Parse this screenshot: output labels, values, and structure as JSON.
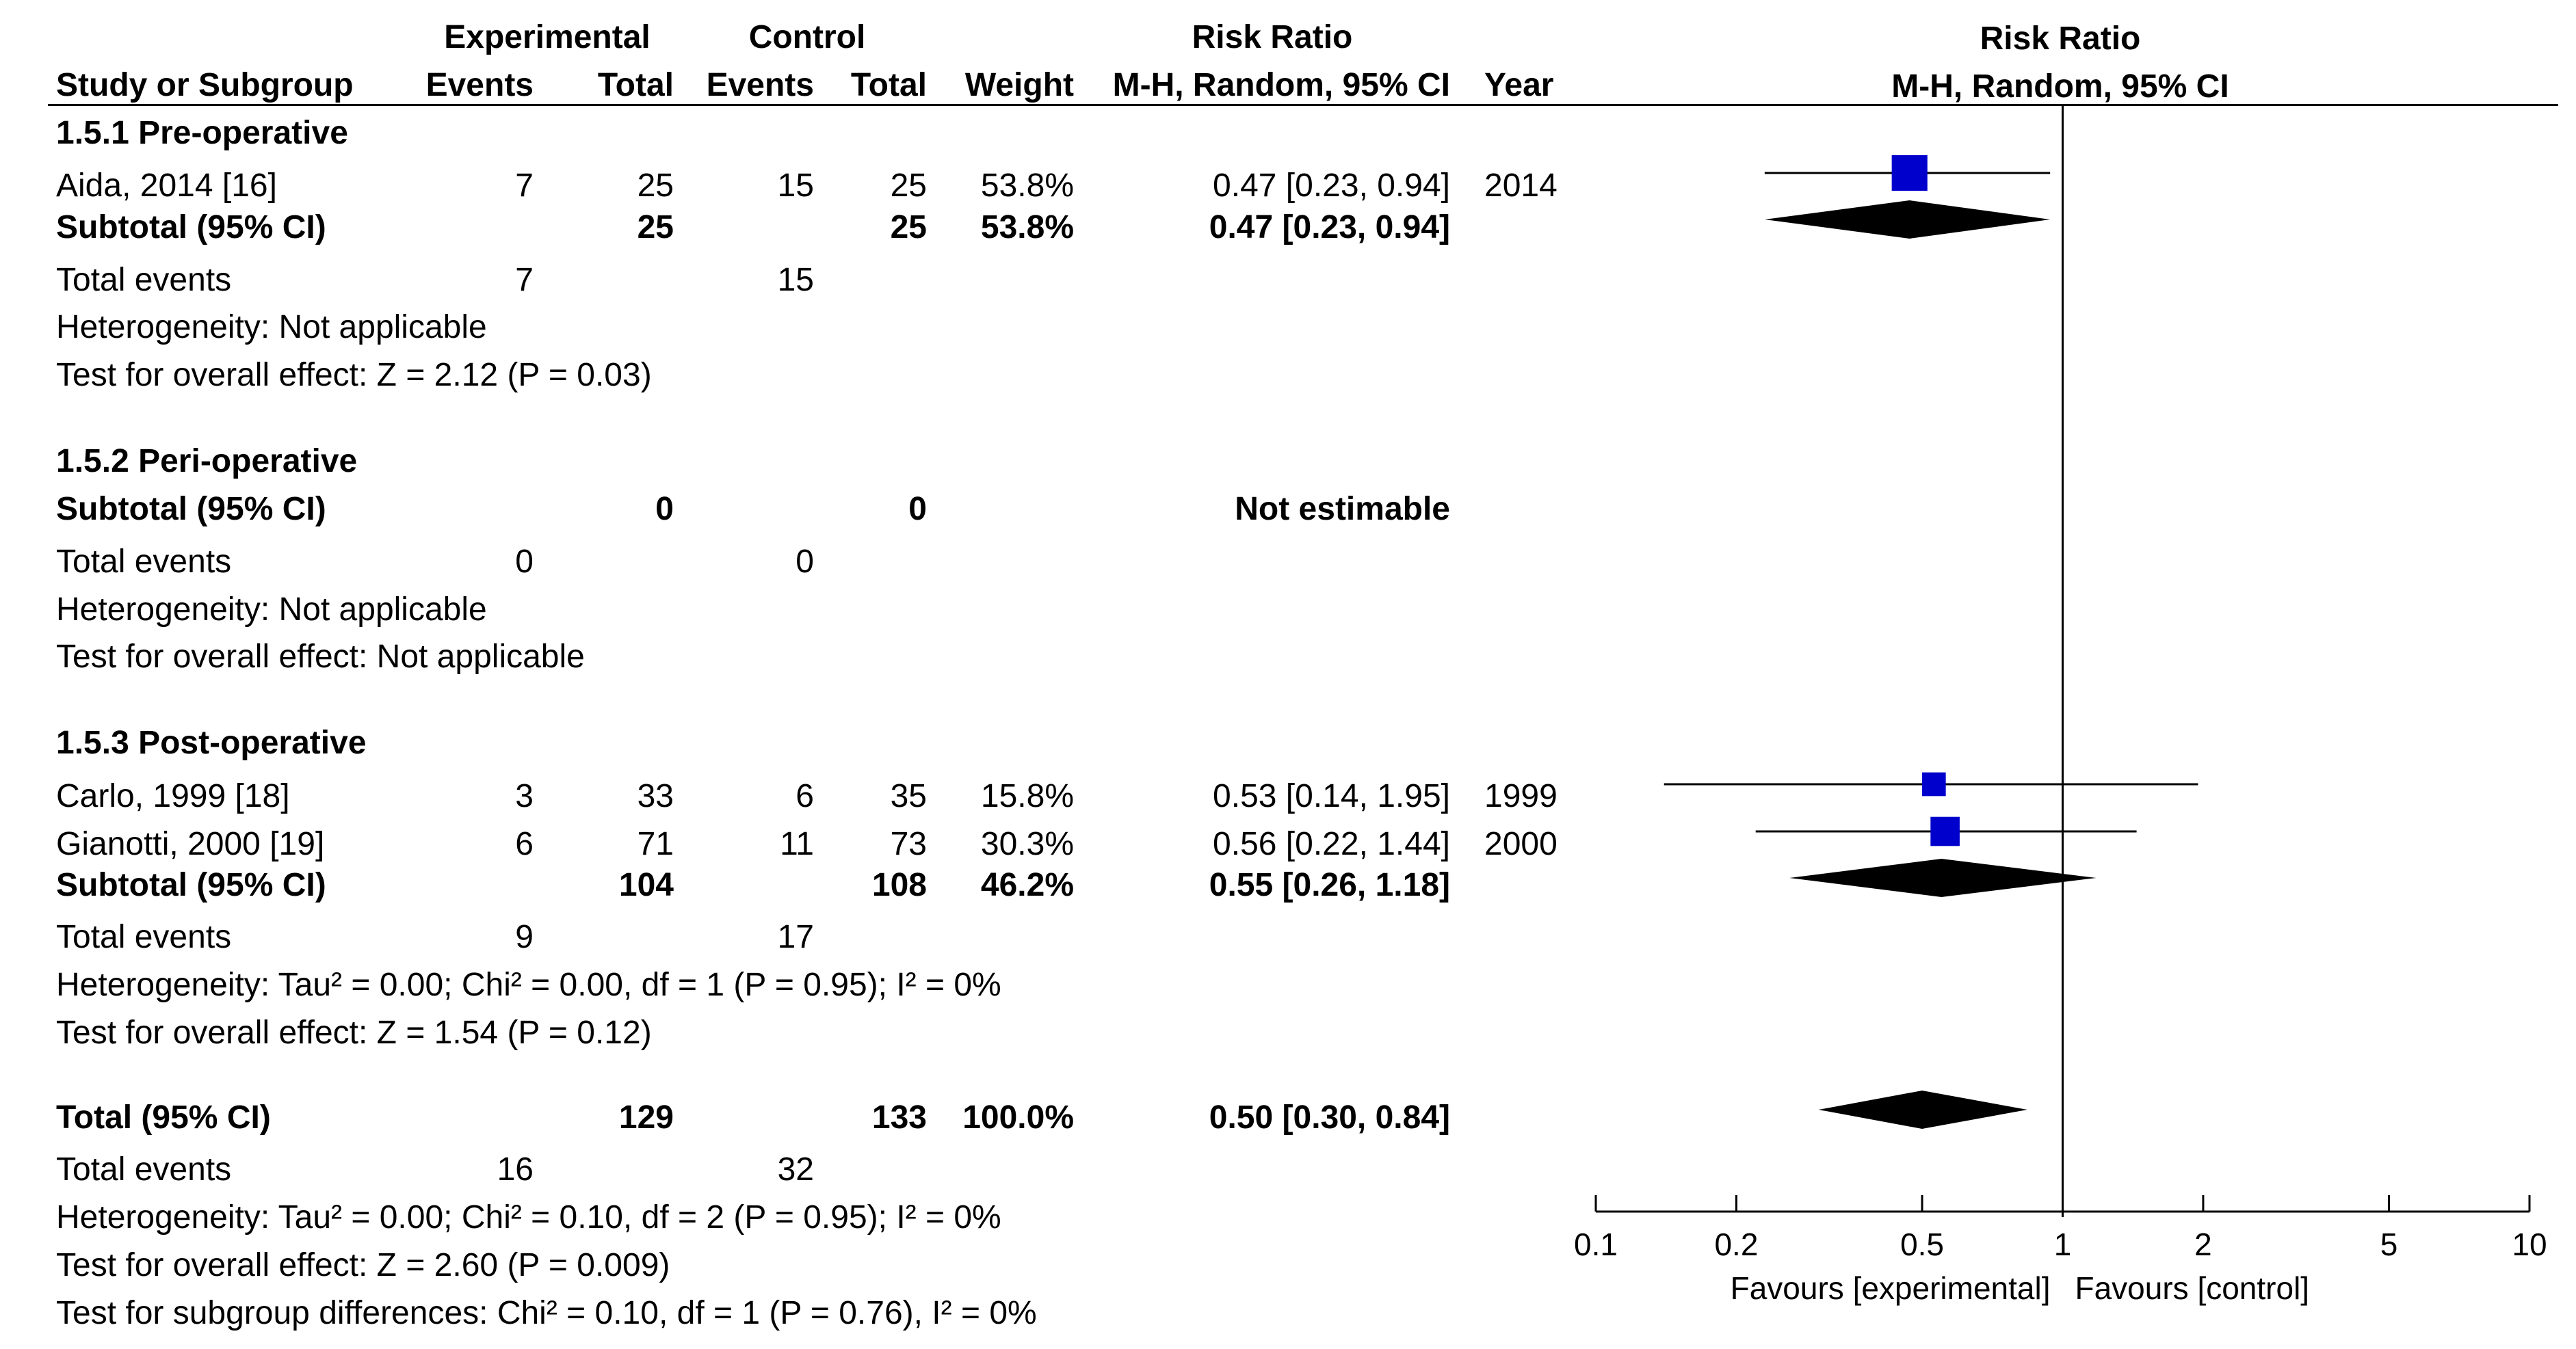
{
  "header": {
    "experimental": "Experimental",
    "control": "Control",
    "risk_ratio": "Risk Ratio",
    "study_or_subgroup": "Study or Subgroup",
    "events": "Events",
    "total": "Total",
    "weight": "Weight",
    "method": "M-H, Random, 95% CI",
    "year": "Year",
    "plot_title": "Risk Ratio",
    "plot_method": "M-H, Random, 95% CI"
  },
  "rows": [
    {
      "type": "group",
      "label": "1.5.1 Pre-operative"
    },
    {
      "type": "study",
      "label": "Aida, 2014 [16]",
      "e_events": "7",
      "e_total": "25",
      "c_events": "15",
      "c_total": "25",
      "weight": "53.8%",
      "ci": "0.47 [0.23, 0.94]",
      "year": "2014"
    },
    {
      "type": "subtotal",
      "label": "Subtotal (95% CI)",
      "e_total": "25",
      "c_total": "25",
      "weight": "53.8%",
      "ci": "0.47 [0.23, 0.94]"
    },
    {
      "type": "events",
      "label": "Total events",
      "e_events": "7",
      "c_events": "15"
    },
    {
      "type": "text",
      "label": "Heterogeneity: Not applicable"
    },
    {
      "type": "text",
      "label": "Test for overall effect: Z = 2.12 (P = 0.03)"
    },
    {
      "type": "group",
      "label": "1.5.2 Peri-operative"
    },
    {
      "type": "subtotal",
      "label": "Subtotal (95% CI)",
      "e_total": "0",
      "c_total": "0",
      "weight": "",
      "ci": "Not estimable"
    },
    {
      "type": "events",
      "label": "Total events",
      "e_events": "0",
      "c_events": "0"
    },
    {
      "type": "text",
      "label": "Heterogeneity: Not applicable"
    },
    {
      "type": "text",
      "label": "Test for overall effect: Not applicable"
    },
    {
      "type": "group",
      "label": "1.5.3 Post-operative"
    },
    {
      "type": "study",
      "label": "Carlo, 1999 [18]",
      "e_events": "3",
      "e_total": "33",
      "c_events": "6",
      "c_total": "35",
      "weight": "15.8%",
      "ci": "0.53 [0.14, 1.95]",
      "year": "1999"
    },
    {
      "type": "study",
      "label": "Gianotti, 2000 [19]",
      "e_events": "6",
      "e_total": "71",
      "c_events": "11",
      "c_total": "73",
      "weight": "30.3%",
      "ci": "0.56 [0.22, 1.44]",
      "year": "2000"
    },
    {
      "type": "subtotal",
      "label": "Subtotal (95% CI)",
      "e_total": "104",
      "c_total": "108",
      "weight": "46.2%",
      "ci": "0.55 [0.26, 1.18]"
    },
    {
      "type": "events",
      "label": "Total events",
      "e_events": "9",
      "c_events": "17"
    },
    {
      "type": "text",
      "label": "Heterogeneity: Tau² = 0.00; Chi² = 0.00, df = 1 (P = 0.95); I² = 0%"
    },
    {
      "type": "text",
      "label": "Test for overall effect: Z = 1.54 (P = 0.12)"
    },
    {
      "type": "subtotal",
      "label": "Total (95% CI)",
      "e_total": "129",
      "c_total": "133",
      "weight": "100.0%",
      "ci": "0.50 [0.30, 0.84]"
    },
    {
      "type": "events",
      "label": "Total events",
      "e_events": "16",
      "c_events": "32"
    },
    {
      "type": "text",
      "label": "Heterogeneity: Tau² = 0.00; Chi² = 0.10, df = 2 (P = 0.95); I² = 0%"
    },
    {
      "type": "text",
      "label": "Test for overall effect: Z = 2.60 (P = 0.009)"
    },
    {
      "type": "text",
      "label": "Test for subgroup differences: Chi² = 0.10, df = 1 (P = 0.76), I² = 0%"
    }
  ],
  "chart_data": {
    "type": "forest",
    "title": "Risk Ratio",
    "method": "M-H, Random, 95% CI",
    "x_scale": "log",
    "xlim": [
      0.1,
      10
    ],
    "null_line": 1,
    "ticks": [
      0.1,
      0.2,
      0.5,
      1,
      2,
      5,
      10
    ],
    "tick_labels": [
      "0.1",
      "0.2",
      "0.5",
      "1",
      "2",
      "5",
      "10"
    ],
    "favours_left": "Favours [experimental]",
    "favours_right": "Favours [control]",
    "square_color": "#0000cc",
    "diamond_color": "#000000",
    "studies": [
      {
        "name": "Aida, 2014 [16]",
        "rr": 0.47,
        "lo": 0.23,
        "hi": 0.94,
        "weight": 53.8
      },
      {
        "name": "Carlo, 1999 [18]",
        "rr": 0.53,
        "lo": 0.14,
        "hi": 1.95,
        "weight": 15.8
      },
      {
        "name": "Gianotti, 2000 [19]",
        "rr": 0.56,
        "lo": 0.22,
        "hi": 1.44,
        "weight": 30.3
      }
    ],
    "diamonds": [
      {
        "name": "Subtotal 1.5.1 Pre-operative",
        "rr": 0.47,
        "lo": 0.23,
        "hi": 0.94
      },
      {
        "name": "Subtotal 1.5.3 Post-operative",
        "rr": 0.55,
        "lo": 0.26,
        "hi": 1.18
      },
      {
        "name": "Total (95% CI)",
        "rr": 0.5,
        "lo": 0.3,
        "hi": 0.84
      }
    ]
  }
}
